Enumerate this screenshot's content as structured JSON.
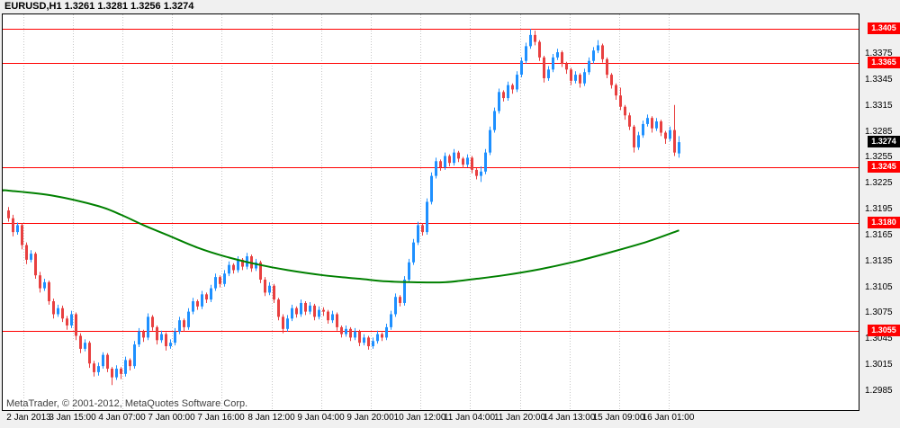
{
  "header": {
    "title_text": "EURUSD,H1 1.3261 1.3281 1.3256 1.3274",
    "symbol": "EURUSD",
    "timeframe": "H1",
    "ohlc": {
      "open": "1.3261",
      "high": "1.3281",
      "low": "1.3256",
      "close": "1.3274"
    }
  },
  "footer": {
    "watermark": "MetaTrader, © 2001-2012, MetaQuotes Software Corp."
  },
  "colors": {
    "bull": "#1e90ff",
    "bear": "#e84040",
    "ma": "#008000",
    "level": "#ff0000",
    "level_label_bg": "#ff0000",
    "current_label_bg": "#000000",
    "grid": "#c6c6c6",
    "bg": "#f0f0f0",
    "plot_bg": "#ffffff",
    "border": "#000000"
  },
  "chart_data": {
    "type": "candlestick",
    "title": "EURUSD,H1",
    "symbol": "EURUSD",
    "timeframe": "H1",
    "legend_position": "none",
    "grid": "vertical-dotted",
    "y_range": {
      "top_price": 1.3422,
      "bottom_price": 1.2962
    },
    "x_labels": [
      "2 Jan 2013",
      "3 Jan 15:00",
      "4 Jan 07:00",
      "7 Jan 00:00",
      "7 Jan 16:00",
      "8 Jan 12:00",
      "9 Jan 04:00",
      "9 Jan 20:00",
      "10 Jan 12:00",
      "11 Jan 04:00",
      "11 Jan 20:00",
      "14 Jan 13:00",
      "15 Jan 09:00",
      "16 Jan 01:00"
    ],
    "y_ticks": [
      1.3375,
      1.3345,
      1.3315,
      1.3285,
      1.3255,
      1.3225,
      1.3195,
      1.3165,
      1.3135,
      1.3105,
      1.3075,
      1.3045,
      1.3015,
      1.2985
    ],
    "levels": [
      1.3405,
      1.3365,
      1.3245,
      1.318,
      1.3055
    ],
    "current_price": 1.3274,
    "candles": [
      [
        1.3195,
        1.3199,
        1.3182,
        1.3186
      ],
      [
        1.3186,
        1.319,
        1.3165,
        1.317
      ],
      [
        1.317,
        1.3181,
        1.3167,
        1.3178
      ],
      [
        1.3178,
        1.318,
        1.315,
        1.3155
      ],
      [
        1.3155,
        1.3158,
        1.3133,
        1.3138
      ],
      [
        1.3138,
        1.3149,
        1.3135,
        1.3145
      ],
      [
        1.3145,
        1.3147,
        1.3116,
        1.312
      ],
      [
        1.312,
        1.3124,
        1.31,
        1.3105
      ],
      [
        1.3105,
        1.3116,
        1.3102,
        1.3112
      ],
      [
        1.3112,
        1.3114,
        1.3086,
        1.309
      ],
      [
        1.309,
        1.3093,
        1.307,
        1.3075
      ],
      [
        1.3075,
        1.3086,
        1.3072,
        1.3082
      ],
      [
        1.3082,
        1.3085,
        1.3066,
        1.307
      ],
      [
        1.307,
        1.3073,
        1.3057,
        1.3062
      ],
      [
        1.3062,
        1.3079,
        1.3059,
        1.3075
      ],
      [
        1.3075,
        1.3077,
        1.3045,
        1.305
      ],
      [
        1.305,
        1.3053,
        1.303,
        1.3035
      ],
      [
        1.3035,
        1.3046,
        1.3032,
        1.3042
      ],
      [
        1.3042,
        1.3044,
        1.3013,
        1.3018
      ],
      [
        1.3018,
        1.3021,
        1.3003,
        1.3008
      ],
      [
        1.3008,
        1.3019,
        1.3004,
        1.3015
      ],
      [
        1.3015,
        1.3031,
        1.3012,
        1.3028
      ],
      [
        1.3028,
        1.303,
        1.3008,
        1.3012
      ],
      [
        1.3012,
        1.3014,
        1.2993,
        1.3002
      ],
      [
        1.3002,
        1.3016,
        1.2999,
        1.3012
      ],
      [
        1.3012,
        1.3014,
        1.3,
        1.3006
      ],
      [
        1.3006,
        1.3026,
        1.3003,
        1.3022
      ],
      [
        1.3022,
        1.3024,
        1.301,
        1.3015
      ],
      [
        1.3015,
        1.3044,
        1.3012,
        1.304
      ],
      [
        1.304,
        1.3059,
        1.3037,
        1.3055
      ],
      [
        1.3055,
        1.3057,
        1.3043,
        1.3048
      ],
      [
        1.3048,
        1.3076,
        1.3045,
        1.3072
      ],
      [
        1.3072,
        1.3074,
        1.3056,
        1.306
      ],
      [
        1.306,
        1.3062,
        1.304,
        1.3045
      ],
      [
        1.3045,
        1.3056,
        1.3042,
        1.3052
      ],
      [
        1.3052,
        1.3054,
        1.3033,
        1.3038
      ],
      [
        1.3038,
        1.3046,
        1.3035,
        1.3042
      ],
      [
        1.3042,
        1.3059,
        1.3039,
        1.3055
      ],
      [
        1.3055,
        1.3072,
        1.3052,
        1.3068
      ],
      [
        1.3068,
        1.307,
        1.3055,
        1.306
      ],
      [
        1.306,
        1.3082,
        1.3057,
        1.3078
      ],
      [
        1.3078,
        1.3094,
        1.3075,
        1.309
      ],
      [
        1.309,
        1.3092,
        1.308,
        1.3084
      ],
      [
        1.3084,
        1.3102,
        1.3081,
        1.3098
      ],
      [
        1.3098,
        1.31,
        1.3088,
        1.3092
      ],
      [
        1.3092,
        1.3109,
        1.3089,
        1.3105
      ],
      [
        1.3105,
        1.3122,
        1.3102,
        1.3118
      ],
      [
        1.3118,
        1.312,
        1.3106,
        1.311
      ],
      [
        1.311,
        1.3126,
        1.3107,
        1.3122
      ],
      [
        1.3122,
        1.3136,
        1.3119,
        1.3132
      ],
      [
        1.3132,
        1.3134,
        1.3122,
        1.3126
      ],
      [
        1.3126,
        1.3142,
        1.3123,
        1.3138
      ],
      [
        1.3138,
        1.314,
        1.3126,
        1.313
      ],
      [
        1.313,
        1.3146,
        1.3127,
        1.3142
      ],
      [
        1.3142,
        1.3144,
        1.3124,
        1.3128
      ],
      [
        1.3128,
        1.3139,
        1.3125,
        1.3135
      ],
      [
        1.3135,
        1.3137,
        1.3111,
        1.3115
      ],
      [
        1.3115,
        1.3118,
        1.3096,
        1.31
      ],
      [
        1.31,
        1.3112,
        1.3097,
        1.3108
      ],
      [
        1.3108,
        1.311,
        1.3088,
        1.3092
      ],
      [
        1.3092,
        1.3094,
        1.3068,
        1.3072
      ],
      [
        1.3072,
        1.3075,
        1.3053,
        1.3058
      ],
      [
        1.3058,
        1.3074,
        1.3055,
        1.307
      ],
      [
        1.307,
        1.3086,
        1.3067,
        1.3082
      ],
      [
        1.3082,
        1.3084,
        1.3071,
        1.3075
      ],
      [
        1.3075,
        1.3092,
        1.3072,
        1.3088
      ],
      [
        1.3088,
        1.309,
        1.3074,
        1.3078
      ],
      [
        1.3078,
        1.3089,
        1.3075,
        1.3085
      ],
      [
        1.3085,
        1.3087,
        1.3068,
        1.3072
      ],
      [
        1.3072,
        1.3084,
        1.3069,
        1.308
      ],
      [
        1.308,
        1.3083,
        1.3073,
        1.3078
      ],
      [
        1.3078,
        1.308,
        1.3064,
        1.3068
      ],
      [
        1.3068,
        1.3079,
        1.3065,
        1.3075
      ],
      [
        1.3075,
        1.3077,
        1.3056,
        1.306
      ],
      [
        1.306,
        1.3062,
        1.3048,
        1.3052
      ],
      [
        1.3052,
        1.3062,
        1.3049,
        1.3058
      ],
      [
        1.3058,
        1.306,
        1.3044,
        1.3048
      ],
      [
        1.3048,
        1.3059,
        1.3045,
        1.3055
      ],
      [
        1.3055,
        1.3057,
        1.3038,
        1.3042
      ],
      [
        1.3042,
        1.3052,
        1.3039,
        1.3048
      ],
      [
        1.3048,
        1.305,
        1.3034,
        1.3038
      ],
      [
        1.3038,
        1.3048,
        1.3035,
        1.3044
      ],
      [
        1.3044,
        1.3056,
        1.3041,
        1.3052
      ],
      [
        1.3052,
        1.3054,
        1.3044,
        1.3048
      ],
      [
        1.3048,
        1.3064,
        1.3045,
        1.306
      ],
      [
        1.306,
        1.3079,
        1.3057,
        1.3075
      ],
      [
        1.3075,
        1.3099,
        1.3072,
        1.3095
      ],
      [
        1.3095,
        1.3097,
        1.3084,
        1.3088
      ],
      [
        1.3088,
        1.3119,
        1.3085,
        1.3115
      ],
      [
        1.3115,
        1.3139,
        1.3112,
        1.3135
      ],
      [
        1.3135,
        1.3162,
        1.3132,
        1.3158
      ],
      [
        1.3158,
        1.3182,
        1.3155,
        1.3178
      ],
      [
        1.3178,
        1.318,
        1.3166,
        1.317
      ],
      [
        1.317,
        1.3209,
        1.3167,
        1.3205
      ],
      [
        1.3205,
        1.3239,
        1.3202,
        1.3235
      ],
      [
        1.3235,
        1.3256,
        1.3232,
        1.3252
      ],
      [
        1.3252,
        1.3254,
        1.3241,
        1.3245
      ],
      [
        1.3245,
        1.3262,
        1.3242,
        1.3258
      ],
      [
        1.3258,
        1.326,
        1.3246,
        1.325
      ],
      [
        1.325,
        1.3266,
        1.3247,
        1.3262
      ],
      [
        1.3262,
        1.3264,
        1.3251,
        1.3255
      ],
      [
        1.3255,
        1.3257,
        1.3244,
        1.3248
      ],
      [
        1.3248,
        1.326,
        1.3245,
        1.3256
      ],
      [
        1.3256,
        1.3258,
        1.3238,
        1.3242
      ],
      [
        1.3242,
        1.3244,
        1.3231,
        1.3235
      ],
      [
        1.3235,
        1.3246,
        1.3228,
        1.324
      ],
      [
        1.324,
        1.3266,
        1.3237,
        1.3262
      ],
      [
        1.3262,
        1.3292,
        1.3259,
        1.3288
      ],
      [
        1.3288,
        1.3314,
        1.3285,
        1.331
      ],
      [
        1.331,
        1.3336,
        1.3307,
        1.3332
      ],
      [
        1.3332,
        1.3334,
        1.3321,
        1.3325
      ],
      [
        1.3325,
        1.3344,
        1.3322,
        1.334
      ],
      [
        1.334,
        1.3342,
        1.333,
        1.3335
      ],
      [
        1.3335,
        1.3356,
        1.3332,
        1.3352
      ],
      [
        1.3352,
        1.3372,
        1.3349,
        1.3368
      ],
      [
        1.3368,
        1.3389,
        1.3365,
        1.3385
      ],
      [
        1.3385,
        1.3405,
        1.3382,
        1.3398
      ],
      [
        1.3398,
        1.3403,
        1.3386,
        1.339
      ],
      [
        1.339,
        1.3392,
        1.3368,
        1.3372
      ],
      [
        1.3372,
        1.3374,
        1.3343,
        1.3348
      ],
      [
        1.3348,
        1.3362,
        1.3345,
        1.3358
      ],
      [
        1.3358,
        1.3376,
        1.3355,
        1.3372
      ],
      [
        1.3372,
        1.3382,
        1.3369,
        1.3378
      ],
      [
        1.3378,
        1.338,
        1.3361,
        1.3365
      ],
      [
        1.3365,
        1.3367,
        1.3353,
        1.3358
      ],
      [
        1.3358,
        1.336,
        1.334,
        1.3345
      ],
      [
        1.3345,
        1.3356,
        1.3342,
        1.3352
      ],
      [
        1.3352,
        1.3354,
        1.3337,
        1.3342
      ],
      [
        1.3342,
        1.3359,
        1.3339,
        1.3355
      ],
      [
        1.3355,
        1.3372,
        1.3352,
        1.3368
      ],
      [
        1.3368,
        1.3384,
        1.3365,
        1.338
      ],
      [
        1.338,
        1.3392,
        1.3377,
        1.3386
      ],
      [
        1.3386,
        1.3388,
        1.3366,
        1.337
      ],
      [
        1.337,
        1.3372,
        1.3348,
        1.3352
      ],
      [
        1.3352,
        1.3354,
        1.3336,
        1.334
      ],
      [
        1.334,
        1.3342,
        1.3323,
        1.3328
      ],
      [
        1.3328,
        1.3337,
        1.3311,
        1.3315
      ],
      [
        1.3315,
        1.3317,
        1.33,
        1.3305
      ],
      [
        1.3305,
        1.3308,
        1.3288,
        1.3292
      ],
      [
        1.3292,
        1.3294,
        1.3262,
        1.3268
      ],
      [
        1.3268,
        1.3286,
        1.3265,
        1.3282
      ],
      [
        1.3282,
        1.3299,
        1.3279,
        1.3295
      ],
      [
        1.3295,
        1.3306,
        1.3292,
        1.3302
      ],
      [
        1.3302,
        1.3304,
        1.3285,
        1.329
      ],
      [
        1.329,
        1.3302,
        1.3287,
        1.3298
      ],
      [
        1.3298,
        1.33,
        1.3281,
        1.3285
      ],
      [
        1.3285,
        1.3287,
        1.3272,
        1.3278
      ],
      [
        1.3278,
        1.3292,
        1.3275,
        1.3288
      ],
      [
        1.3288,
        1.3317,
        1.3258,
        1.3262
      ],
      [
        1.3261,
        1.3281,
        1.3256,
        1.3274
      ]
    ],
    "ma": {
      "name": "moving-average",
      "points": [
        [
          0,
          1.3218
        ],
        [
          10,
          1.3212
        ],
        [
          20,
          1.32
        ],
        [
          25,
          1.319
        ],
        [
          30,
          1.3178
        ],
        [
          36,
          1.3165
        ],
        [
          42,
          1.3152
        ],
        [
          48,
          1.3142
        ],
        [
          55,
          1.3133
        ],
        [
          62,
          1.3126
        ],
        [
          70,
          1.312
        ],
        [
          78,
          1.3116
        ],
        [
          84,
          1.3113
        ],
        [
          90,
          1.3112
        ],
        [
          97,
          1.3112
        ],
        [
          104,
          1.3116
        ],
        [
          110,
          1.312
        ],
        [
          118,
          1.3127
        ],
        [
          126,
          1.3136
        ],
        [
          134,
          1.3147
        ],
        [
          142,
          1.3159
        ],
        [
          149,
          1.3172
        ]
      ]
    }
  }
}
